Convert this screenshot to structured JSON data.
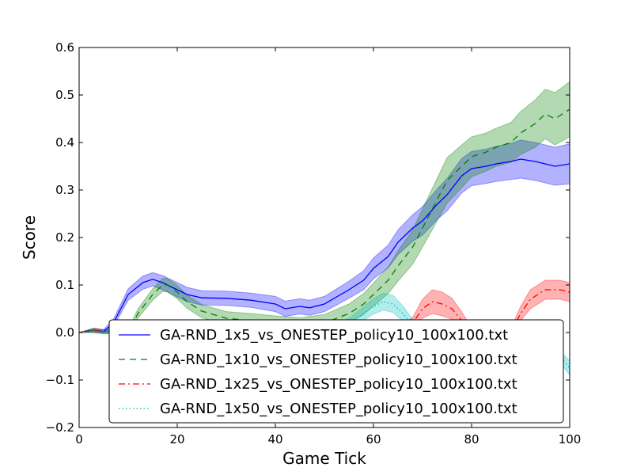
{
  "chart_data": {
    "type": "line",
    "title": "",
    "xlabel": "Game Tick",
    "ylabel": "Score",
    "xlim": [
      0,
      100
    ],
    "ylim": [
      -0.2,
      0.6
    ],
    "x_ticks": [
      "0",
      "20",
      "40",
      "60",
      "80",
      "100"
    ],
    "y_ticks": [
      "0.6",
      "0.5",
      "0.4",
      "0.3",
      "0.2",
      "0.1",
      "0.0",
      "−0.1",
      "−0.2"
    ],
    "legend_position": "lower-center",
    "grid": false,
    "series": [
      {
        "name": "GA-RND_1x5_vs_ONESTEP_policy10_100x100.txt",
        "color": "#0000ff",
        "fill": "#0000ff",
        "dash": "solid",
        "x": [
          0,
          3,
          5,
          7,
          10,
          13,
          15,
          17,
          20,
          22,
          25,
          30,
          35,
          40,
          42,
          45,
          47,
          50,
          55,
          58,
          60,
          63,
          65,
          68,
          70,
          73,
          75,
          78,
          80,
          83,
          85,
          88,
          90,
          93,
          95,
          97,
          100
        ],
        "y": [
          0.0,
          0.005,
          0.002,
          0.02,
          0.08,
          0.105,
          0.112,
          0.105,
          0.09,
          0.08,
          0.073,
          0.072,
          0.068,
          0.06,
          0.05,
          0.055,
          0.052,
          0.06,
          0.09,
          0.11,
          0.135,
          0.16,
          0.19,
          0.22,
          0.235,
          0.27,
          0.29,
          0.33,
          0.345,
          0.35,
          0.355,
          0.36,
          0.365,
          0.36,
          0.355,
          0.35,
          0.355
        ],
        "err": [
          0.0,
          0.004,
          0.004,
          0.008,
          0.012,
          0.014,
          0.014,
          0.015,
          0.015,
          0.015,
          0.015,
          0.015,
          0.015,
          0.016,
          0.016,
          0.016,
          0.016,
          0.016,
          0.018,
          0.02,
          0.022,
          0.024,
          0.026,
          0.028,
          0.03,
          0.032,
          0.034,
          0.036,
          0.036,
          0.036,
          0.037,
          0.038,
          0.04,
          0.04,
          0.04,
          0.04,
          0.042
        ]
      },
      {
        "name": "GA-RND_1x10_vs_ONESTEP_policy10_100x100.txt",
        "color": "#008000",
        "fill": "#008000",
        "dash": "dashed",
        "x": [
          0,
          3,
          5,
          8,
          10,
          12,
          15,
          17,
          18,
          20,
          22,
          25,
          30,
          35,
          40,
          45,
          50,
          55,
          58,
          60,
          63,
          65,
          68,
          70,
          73,
          75,
          78,
          80,
          83,
          85,
          88,
          90,
          93,
          95,
          97,
          100
        ],
        "y": [
          0.0,
          0.005,
          0.002,
          0.0,
          0.0,
          0.04,
          0.08,
          0.1,
          0.1,
          0.085,
          0.065,
          0.045,
          0.03,
          0.025,
          0.02,
          0.015,
          0.02,
          0.04,
          0.06,
          0.08,
          0.11,
          0.14,
          0.18,
          0.22,
          0.28,
          0.32,
          0.35,
          0.37,
          0.38,
          0.39,
          0.4,
          0.42,
          0.44,
          0.46,
          0.45,
          0.47
        ],
        "err": [
          0.0,
          0.004,
          0.004,
          0.004,
          0.006,
          0.01,
          0.012,
          0.014,
          0.014,
          0.014,
          0.014,
          0.014,
          0.014,
          0.015,
          0.015,
          0.016,
          0.018,
          0.02,
          0.022,
          0.024,
          0.028,
          0.032,
          0.036,
          0.04,
          0.045,
          0.048,
          0.045,
          0.042,
          0.04,
          0.04,
          0.042,
          0.045,
          0.05,
          0.052,
          0.055,
          0.058
        ]
      },
      {
        "name": "GA-RND_1x25_vs_ONESTEP_policy10_100x100.txt",
        "color": "#ff0000",
        "fill": "#ff0000",
        "dash": "dashdot",
        "x": [
          0,
          3,
          5,
          10,
          20,
          30,
          40,
          45,
          50,
          55,
          60,
          65,
          68,
          70,
          72,
          74,
          76,
          78,
          80,
          83,
          85,
          88,
          90,
          92,
          95,
          98,
          100
        ],
        "y": [
          0.0,
          0.004,
          0.002,
          0.0,
          0.0,
          0.0,
          0.0,
          0.0,
          0.0,
          0.0,
          0.0,
          0.0,
          0.02,
          0.05,
          0.065,
          0.06,
          0.05,
          0.025,
          0.0,
          0.0,
          0.0,
          0.0,
          0.04,
          0.07,
          0.09,
          0.09,
          0.085
        ],
        "err": [
          0.0,
          0.004,
          0.004,
          0.002,
          0.002,
          0.002,
          0.002,
          0.004,
          0.004,
          0.004,
          0.004,
          0.006,
          0.012,
          0.02,
          0.025,
          0.025,
          0.022,
          0.018,
          0.01,
          0.006,
          0.006,
          0.008,
          0.015,
          0.02,
          0.02,
          0.02,
          0.02
        ]
      },
      {
        "name": "GA-RND_1x50_vs_ONESTEP_policy10_100x100.txt",
        "color": "#00bfbf",
        "fill": "#00bfbf",
        "dash": "dotted",
        "x": [
          0,
          3,
          5,
          10,
          20,
          30,
          40,
          45,
          50,
          55,
          58,
          60,
          62,
          64,
          66,
          68,
          70,
          75,
          80,
          85,
          90,
          95,
          98,
          100
        ],
        "y": [
          0.0,
          0.003,
          0.001,
          0.0,
          0.0,
          0.0,
          0.0,
          0.0,
          0.0,
          0.02,
          0.04,
          0.055,
          0.065,
          0.06,
          0.04,
          0.015,
          0.0,
          0.0,
          0.0,
          0.0,
          0.0,
          0.0,
          -0.05,
          -0.075
        ],
        "err": [
          0.0,
          0.004,
          0.004,
          0.002,
          0.002,
          0.002,
          0.002,
          0.004,
          0.004,
          0.01,
          0.014,
          0.016,
          0.018,
          0.018,
          0.016,
          0.012,
          0.006,
          0.004,
          0.004,
          0.004,
          0.004,
          0.006,
          0.012,
          0.015
        ]
      }
    ]
  }
}
